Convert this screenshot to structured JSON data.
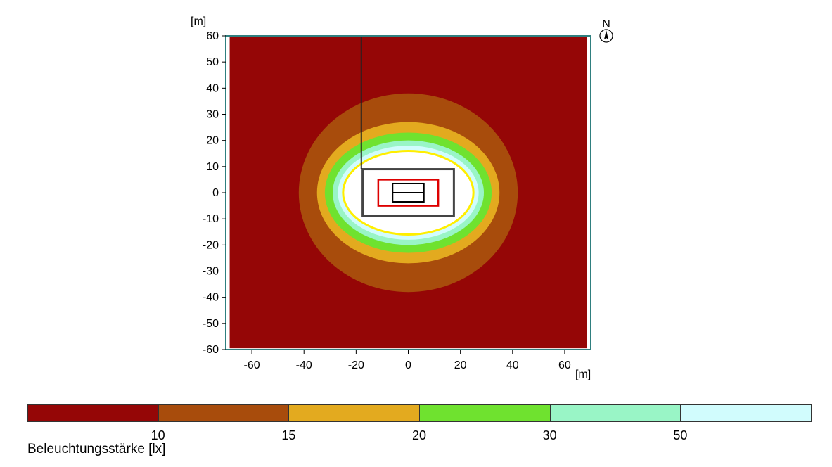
{
  "chart_data": {
    "type": "heatmap",
    "title": "",
    "xlabel": "[m]",
    "ylabel": "[m]",
    "xlim": [
      -70,
      70
    ],
    "ylim": [
      -60,
      60
    ],
    "x_ticks": [
      "-60",
      "-40",
      "-20",
      "0",
      "20",
      "40",
      "60"
    ],
    "x_tick_values": [
      -60,
      -40,
      -20,
      0,
      20,
      40,
      60
    ],
    "y_ticks": [
      "60",
      "50",
      "40",
      "30",
      "20",
      "10",
      "0",
      "-10",
      "-20",
      "-30",
      "-40",
      "-50",
      "-60"
    ],
    "y_tick_values": [
      60,
      50,
      40,
      30,
      20,
      10,
      0,
      -10,
      -20,
      -30,
      -40,
      -50,
      -60
    ],
    "north_label": "N",
    "contour_levels": [
      {
        "min": null,
        "max": 10,
        "color": "#950606"
      },
      {
        "min": 10,
        "max": 15,
        "color": "#a84c0c"
      },
      {
        "min": 15,
        "max": 20,
        "color": "#e3aa1f"
      },
      {
        "min": 20,
        "max": 30,
        "color": "#6fe22f"
      },
      {
        "min": 30,
        "max": 50,
        "color": "#99f5c6"
      },
      {
        "min": 50,
        "max": null,
        "color": "#d1fcfd"
      }
    ],
    "illuminated_zone_color": "#ffffff",
    "isoline_color": "#ffee00"
  },
  "legend": {
    "title": "Beleuchtungsstärke [lx]",
    "ticks": [
      {
        "label": "10",
        "value": 10
      },
      {
        "label": "15",
        "value": 15
      },
      {
        "label": "20",
        "value": 20
      },
      {
        "label": "30",
        "value": 30
      },
      {
        "label": "50",
        "value": 50
      }
    ]
  }
}
